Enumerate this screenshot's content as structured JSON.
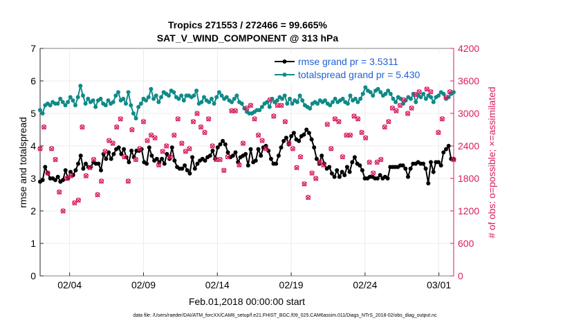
{
  "chart_data": {
    "type": "line",
    "title": "Tropics 271553 / 272466 = 99.665%",
    "subtitle": "SAT_V_WIND_COMPONENT @ 313 hPa",
    "xlabel": "Feb.01,2018 00:00:00 start",
    "ylabel": "rmse and totalspread",
    "ylabel_right": "# of obs: o=possible; ×=assimilated",
    "xlim": [
      1,
      29
    ],
    "ylim": [
      0,
      7
    ],
    "ylim_right": [
      0,
      4200
    ],
    "x_ticks": [
      3,
      8,
      13,
      18,
      23,
      28
    ],
    "x_tick_labels": [
      "02/04",
      "02/09",
      "02/14",
      "02/19",
      "02/24",
      "03/01"
    ],
    "y_ticks": [
      0,
      1,
      2,
      3,
      4,
      5,
      6,
      7
    ],
    "y_tick_labels": [
      "0",
      "1",
      "2",
      "3",
      "4",
      "5",
      "6",
      "7"
    ],
    "y_ticks_right": [
      0,
      600,
      1200,
      1800,
      2400,
      3000,
      3600,
      4200
    ],
    "y_tick_labels_right": [
      "0",
      "600",
      "1200",
      "1800",
      "2400",
      "3000",
      "3600",
      "4200"
    ],
    "footer": "data file: /Users/raeder/DAI/ATM_forcXX/CAM6_setup/f.e21.FHIST_BGC.f09_025.CAM6assim.011/Diags_NTrS_2018-02/obs_diag_output.nc",
    "series": [
      {
        "name": "rmse grand pr = 3.5311",
        "axis": "left",
        "color": "#000000",
        "marker": "circle",
        "values": [
          2.9,
          2.95,
          3.35,
          3.15,
          3.0,
          3.0,
          2.95,
          3.05,
          2.9,
          2.95,
          3.25,
          3.0,
          3.2,
          3.1,
          3.25,
          3.45,
          3.7,
          3.3,
          3.45,
          3.35,
          3.35,
          3.5,
          3.45,
          3.45,
          3.25,
          3.75,
          3.6,
          3.8,
          3.6,
          3.75,
          3.9,
          3.95,
          3.75,
          3.9,
          3.65,
          3.5,
          3.85,
          3.65,
          3.85,
          3.85,
          3.9,
          3.5,
          3.45,
          3.95,
          3.7,
          3.55,
          3.6,
          3.5,
          3.6,
          3.45,
          3.75,
          3.6,
          3.95,
          3.55,
          3.35,
          3.3,
          3.3,
          3.4,
          3.25,
          3.15,
          3.65,
          3.3,
          3.45,
          3.55,
          3.6,
          3.55,
          3.65,
          3.7,
          3.85,
          3.6,
          3.95,
          4.05,
          4.15,
          4.05,
          3.8,
          3.65,
          3.7,
          3.8,
          3.5,
          3.65,
          3.7,
          3.75,
          3.4,
          3.9,
          3.5,
          3.55,
          3.9,
          3.7,
          3.95,
          4.0,
          3.85,
          3.6,
          3.45,
          3.45,
          3.7,
          3.95,
          4.15,
          4.25,
          4.05,
          4.3,
          4.4,
          4.2,
          4.15,
          4.3,
          4.35,
          4.5,
          4.4,
          4.2,
          3.95,
          3.6,
          3.45,
          3.7,
          3.45,
          3.3,
          3.35,
          3.15,
          3.05,
          3.25,
          3.05,
          3.2,
          3.1,
          3.35,
          3.2,
          3.5,
          3.65,
          3.45,
          3.4,
          3.25,
          3.0,
          3.0,
          3.05,
          3.05,
          3.0,
          3.0,
          3.1,
          3.0,
          3.05,
          3.0,
          3.35,
          3.35,
          3.35,
          3.35,
          3.4,
          3.4,
          3.3,
          3.05,
          3.3,
          3.45,
          3.45,
          3.5,
          3.45,
          3.45,
          3.3,
          2.85,
          3.5,
          3.2,
          3.5,
          3.5,
          3.4,
          3.8,
          3.9,
          4.0,
          3.6,
          3.6
        ]
      },
      {
        "name": "totalspread grand pr = 5.430",
        "axis": "left",
        "color": "#0f8a88",
        "marker": "circle",
        "values": [
          5.1,
          5.0,
          5.25,
          5.3,
          5.25,
          5.35,
          5.3,
          5.3,
          5.45,
          5.35,
          5.25,
          5.35,
          5.5,
          5.4,
          5.25,
          5.5,
          5.85,
          5.55,
          5.3,
          5.45,
          5.35,
          5.4,
          5.2,
          5.4,
          5.45,
          5.3,
          5.25,
          5.4,
          5.3,
          5.35,
          5.55,
          5.65,
          5.4,
          5.45,
          5.3,
          5.65,
          5.25,
          5.0,
          4.85,
          5.2,
          5.3,
          5.45,
          5.4,
          5.5,
          5.75,
          5.45,
          5.55,
          5.35,
          5.5,
          5.65,
          5.6,
          5.55,
          5.7,
          5.65,
          5.5,
          5.45,
          5.55,
          5.4,
          5.55,
          5.55,
          5.5,
          5.55,
          5.7,
          5.3,
          5.35,
          5.5,
          5.4,
          5.35,
          5.45,
          5.3,
          5.5,
          5.65,
          5.55,
          5.45,
          5.5,
          5.4,
          5.35,
          5.45,
          5.55,
          5.35,
          5.3,
          5.15,
          5.05,
          5.0,
          5.0,
          5.05,
          5.1,
          5.1,
          5.2,
          5.3,
          5.35,
          5.2,
          5.45,
          5.35,
          5.4,
          5.5,
          5.45,
          5.55,
          5.3,
          5.45,
          5.3,
          5.4,
          5.35,
          5.55,
          5.4,
          5.25,
          5.2,
          5.15,
          5.3,
          5.35,
          5.3,
          5.4,
          5.35,
          5.4,
          5.3,
          5.25,
          5.35,
          5.45,
          5.35,
          5.4,
          5.45,
          5.35,
          5.3,
          5.55,
          5.4,
          5.45,
          5.35,
          5.45,
          5.6,
          5.8,
          5.7,
          5.65,
          5.55,
          5.7,
          5.75,
          5.65,
          5.55,
          5.6,
          5.7,
          5.6,
          5.45,
          5.35,
          5.5,
          5.45,
          5.3,
          5.4,
          5.5,
          5.45,
          5.6,
          5.35,
          5.55,
          5.5,
          5.6,
          5.45,
          5.55,
          5.5,
          5.35,
          5.5,
          5.55,
          5.65,
          5.6,
          5.45,
          5.5,
          5.6,
          5.65
        ]
      },
      {
        "name": "# of obs possible",
        "axis": "right",
        "color": "#d81b60",
        "marker": "circle-open",
        "values": [
          2350,
          2750,
          1900,
          2350,
          2150,
          1550,
          1200,
          1800,
          1850,
          1350,
          1400,
          2750,
          1850,
          2000,
          2150,
          1500,
          1750,
          2300,
          2500,
          2450,
          2750,
          2900,
          2200,
          1750,
          2700,
          2150,
          2350,
          2850,
          2500,
          2600,
          2550,
          2050,
          2300,
          2400,
          2200,
          2600,
          2900,
          2450,
          2300,
          2350,
          2850,
          3000,
          2750,
          2650,
          2900,
          2400,
          2150,
          2150,
          1950,
          2200,
          3050,
          3050,
          2050,
          2450,
          3100,
          3150,
          2900,
          2600,
          2500,
          2350,
          3250,
          2950,
          3150,
          3150,
          2850,
          2450,
          2350,
          2000,
          2200,
          1700,
          1450,
          1900,
          1800,
          2100,
          2050,
          2800,
          2350,
          2900,
          2850,
          2200,
          2600,
          2600,
          2950,
          2900,
          2650,
          2550,
          2100,
          1900,
          2100,
          2150,
          2750,
          2850,
          3100,
          3050,
          3150,
          3250,
          3000,
          3100,
          3350,
          3400,
          3700,
          3450,
          3400,
          3750,
          2650,
          2900,
          3300,
          3400,
          2150
        ]
      },
      {
        "name": "# of obs assimilated",
        "axis": "right",
        "color": "#d81b60",
        "marker": "x",
        "values": [
          2345,
          2745,
          1895,
          2345,
          2145,
          1545,
          1195,
          1795,
          1845,
          1345,
          1395,
          2745,
          1845,
          1995,
          2145,
          1495,
          1745,
          2295,
          2495,
          2445,
          2745,
          2895,
          2195,
          1745,
          2695,
          2145,
          2345,
          2845,
          2495,
          2595,
          2545,
          2045,
          2295,
          2395,
          2195,
          2595,
          2895,
          2445,
          2295,
          2345,
          2845,
          2995,
          2745,
          2645,
          2895,
          2395,
          2145,
          2145,
          1945,
          2195,
          3045,
          3045,
          2045,
          2445,
          3095,
          3145,
          2895,
          2595,
          2495,
          2345,
          3245,
          2945,
          3145,
          3145,
          2845,
          2445,
          2345,
          1995,
          2195,
          1695,
          1445,
          1895,
          1795,
          2095,
          2045,
          2795,
          2345,
          2895,
          2845,
          2195,
          2595,
          2595,
          2945,
          2895,
          2645,
          2545,
          2095,
          1895,
          2095,
          2145,
          2745,
          2845,
          3095,
          3045,
          3145,
          3245,
          2995,
          3095,
          3345,
          3395,
          3695,
          3445,
          3395,
          3745,
          2645,
          2895,
          3295,
          3395,
          2145
        ]
      }
    ]
  }
}
